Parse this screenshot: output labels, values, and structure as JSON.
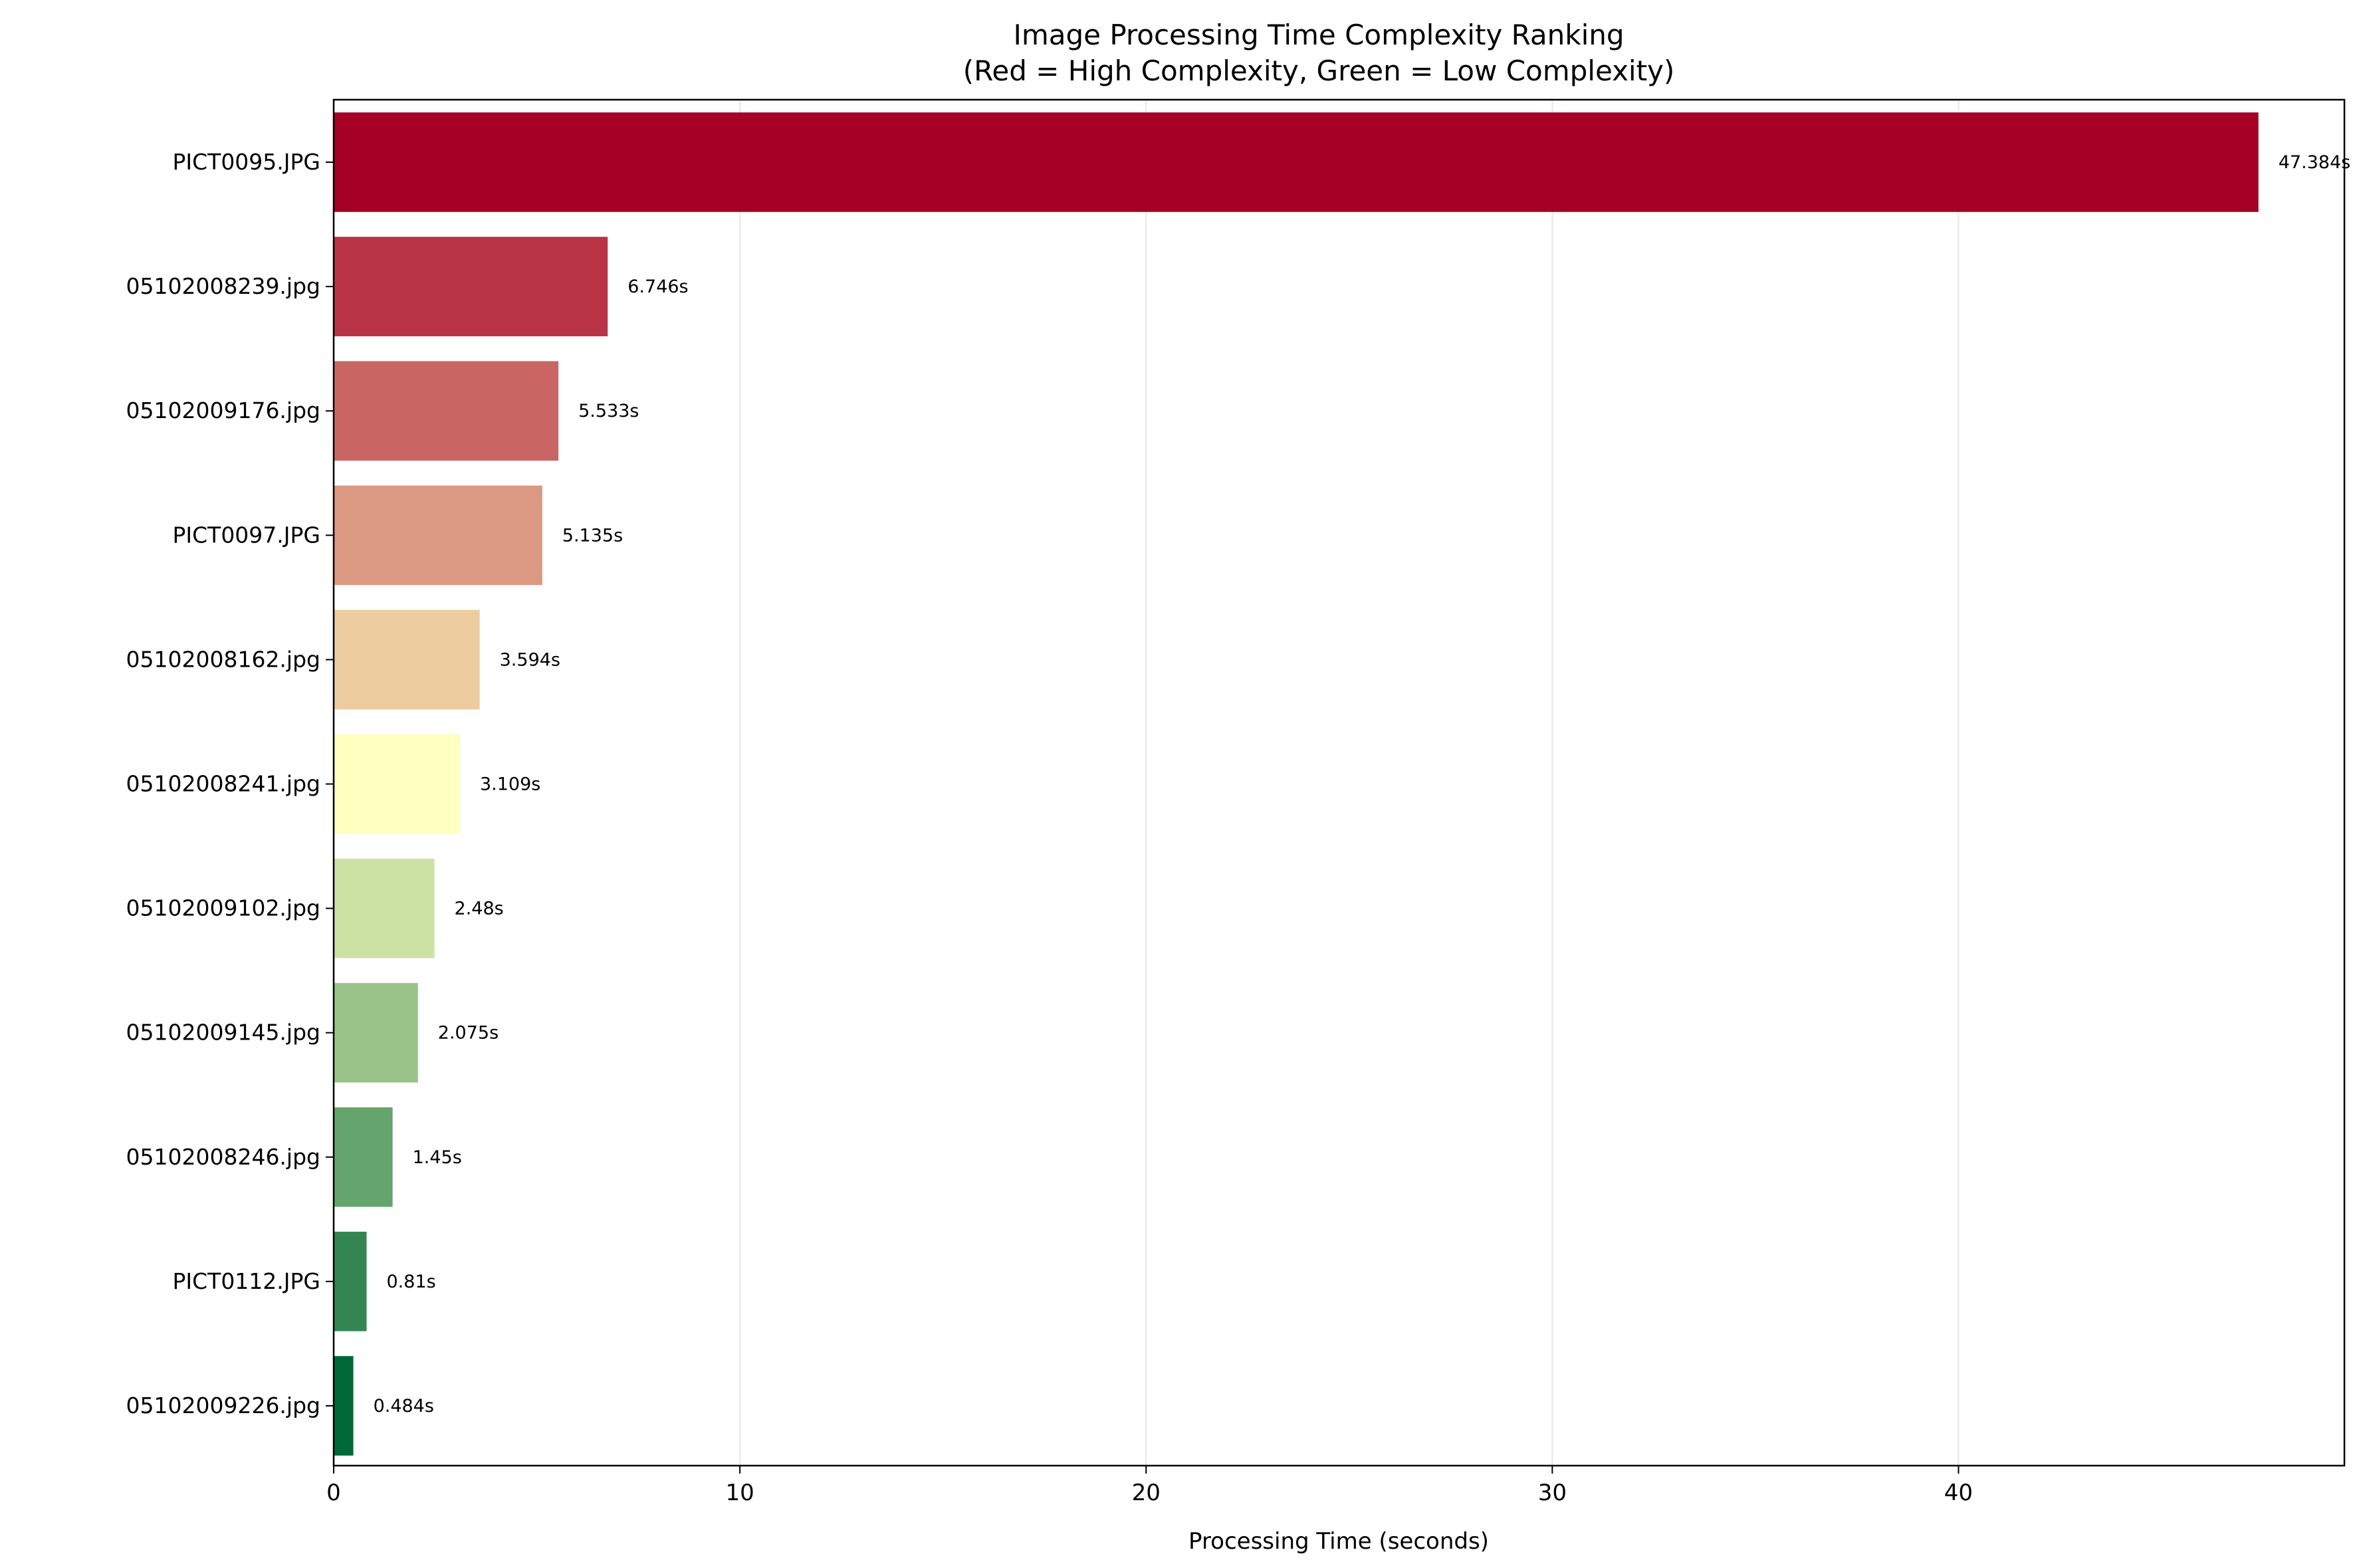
{
  "chart_data": {
    "type": "bar",
    "orientation": "horizontal",
    "title": "Image Processing Time Complexity Ranking",
    "subtitle": "(Red = High Complexity, Green = Low Complexity)",
    "xlabel": "Processing Time (seconds)",
    "ylabel": "",
    "xlim": [
      0,
      49.5
    ],
    "xticks": [
      0,
      10,
      20,
      30,
      40
    ],
    "grid": "x",
    "color_scale": {
      "high": "#a50026",
      "mid": "#ffffbf",
      "low": "#006837"
    },
    "categories": [
      "PICT0095.JPG",
      "05102008239.jpg",
      "05102009176.jpg",
      "PICT0097.JPG",
      "05102008162.jpg",
      "05102008241.jpg",
      "05102009102.jpg",
      "05102009145.jpg",
      "05102008246.jpg",
      "PICT0112.JPG",
      "05102009226.jpg"
    ],
    "values": [
      47.384,
      6.746,
      5.533,
      5.135,
      3.594,
      3.109,
      2.48,
      2.075,
      1.45,
      0.81,
      0.484
    ],
    "value_label_suffix": "s"
  }
}
